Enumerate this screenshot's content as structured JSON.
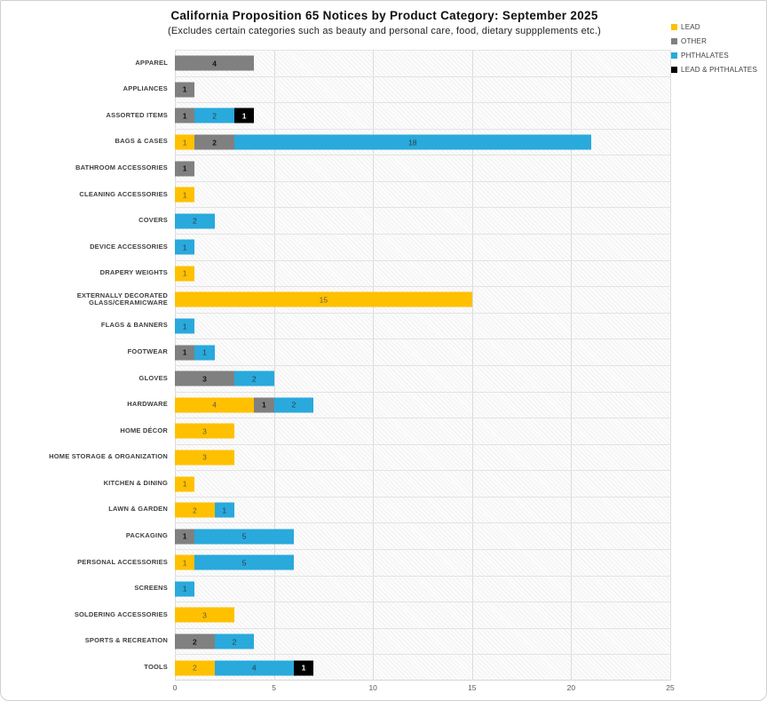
{
  "title": "California Proposition 65 Notices by Product Category: September 2025",
  "subtitle": "(Excludes certain categories such as beauty and personal care, food, dietary suppplements etc.)",
  "legend": [
    {
      "label": "LEAD",
      "color": "#FFC000"
    },
    {
      "label": "OTHER",
      "color": "#808080"
    },
    {
      "label": "PHTHALATES",
      "color": "#29A9DC"
    },
    {
      "label": "LEAD & PHTHALATES",
      "color": "#000000"
    }
  ],
  "colors": {
    "lead": "#FFC000",
    "other": "#808080",
    "phthalates": "#29A9DC",
    "lead_and_phthalates": "#000000",
    "gridline": "#dcdcdc",
    "axis_text": "#595959"
  },
  "chart_data": {
    "type": "bar",
    "orientation": "horizontal",
    "stacked": true,
    "title": "California Proposition 65 Notices by Product Category: September 2025",
    "subtitle": "(Excludes certain categories such as beauty and personal care, food, dietary suppplements etc.)",
    "xlabel": "",
    "ylabel": "",
    "xlim": [
      0,
      25
    ],
    "xticks": [
      0,
      5,
      10,
      15,
      20,
      25
    ],
    "grid": "vertical-major",
    "legend_position": "top-right",
    "categories": [
      "APPAREL",
      "APPLIANCES",
      "ASSORTED ITEMS",
      "BAGS & CASES",
      "BATHROOM ACCESSORIES",
      "CLEANING ACCESSORIES",
      "COVERS",
      "DEVICE ACCESSORIES",
      "DRAPERY WEIGHTS",
      "EXTERNALLY DECORATED GLASS/CERAMICWARE",
      "FLAGS & BANNERS",
      "FOOTWEAR",
      "GLOVES",
      "HARDWARE",
      "HOME DÉCOR",
      "HOME STORAGE & ORGANIZATION",
      "KITCHEN & DINING",
      "LAWN & GARDEN",
      "PACKAGING",
      "PERSONAL ACCESSORIES",
      "SCREENS",
      "SOLDERING ACCESSORIES",
      "SPORTS & RECREATION",
      "TOOLS"
    ],
    "series": [
      {
        "name": "LEAD",
        "color": "#FFC000",
        "label_color": "#5f5b4a",
        "label_bold": false,
        "values": [
          0,
          0,
          0,
          1,
          0,
          1,
          0,
          0,
          1,
          15,
          0,
          0,
          0,
          4,
          3,
          3,
          1,
          2,
          0,
          1,
          0,
          3,
          0,
          2
        ]
      },
      {
        "name": "OTHER",
        "color": "#808080",
        "label_color": "#141414",
        "label_bold": true,
        "values": [
          4,
          1,
          1,
          2,
          1,
          0,
          0,
          0,
          0,
          0,
          0,
          1,
          3,
          1,
          0,
          0,
          0,
          0,
          1,
          0,
          0,
          0,
          2,
          0
        ]
      },
      {
        "name": "PHTHALATES",
        "color": "#29A9DC",
        "label_color": "#2e3c44",
        "label_bold": false,
        "values": [
          0,
          0,
          2,
          18,
          0,
          0,
          2,
          1,
          0,
          0,
          1,
          1,
          2,
          2,
          0,
          0,
          0,
          1,
          5,
          5,
          1,
          0,
          2,
          4
        ]
      },
      {
        "name": "LEAD & PHTHALATES",
        "color": "#000000",
        "label_color": "#ffffff",
        "label_bold": true,
        "values": [
          0,
          0,
          1,
          0,
          0,
          0,
          0,
          0,
          0,
          0,
          0,
          0,
          0,
          0,
          0,
          0,
          0,
          0,
          0,
          0,
          0,
          0,
          0,
          1
        ]
      }
    ]
  }
}
